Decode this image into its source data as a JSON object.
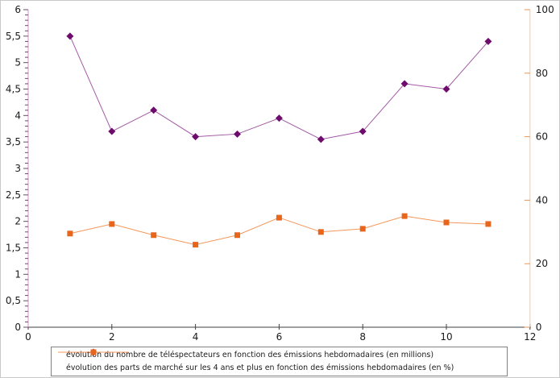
{
  "figure": {
    "background": "#ffffff",
    "border_color": "#c9c9c9",
    "text_color": "#1a1a1a"
  },
  "chart_data": {
    "type": "line",
    "title": "",
    "grid": false,
    "legend_position": "bottom",
    "x": [
      1,
      2,
      3,
      4,
      5,
      6,
      7,
      8,
      9,
      10,
      11
    ],
    "x_axis": {
      "min": 0,
      "max": 12,
      "tick_values": [
        0,
        2,
        4,
        6,
        8,
        10,
        12
      ],
      "tick_labels": [
        "0",
        "2",
        "4",
        "6",
        "8",
        "10",
        "12"
      ],
      "line_color": "#404040",
      "tick_color": "#404040",
      "label_color": "#1a1a1a"
    },
    "left_axis": {
      "min": 0,
      "max": 6,
      "major_step": 0.5,
      "minor_step": 0.1,
      "tick_values": [
        0,
        0.5,
        1,
        1.5,
        2,
        2.5,
        3,
        3.5,
        4,
        4.5,
        5,
        5.5,
        6
      ],
      "tick_labels": [
        "0",
        "0,5",
        "1",
        "1,5",
        "2",
        "2,5",
        "3",
        "3,5",
        "4",
        "4,5",
        "5",
        "5,5",
        "6"
      ],
      "line_color": "#d98fd6",
      "tick_color": "#6b4a6b",
      "label_color": "#1a1a1a"
    },
    "right_axis": {
      "min": 0,
      "max": 100,
      "major_step": 20,
      "tick_values": [
        0,
        20,
        40,
        60,
        80,
        100
      ],
      "tick_labels": [
        "0",
        "20",
        "40",
        "60",
        "80",
        "100"
      ],
      "line_color": "#f6c6a2",
      "tick_color": "#ee9450",
      "label_color": "#1a1a1a"
    },
    "series": [
      {
        "name": "évolution du nombre de téléspectateurs en fonction des émissions hebdomadaires (en millions)",
        "axis": "left",
        "marker": "diamond",
        "marker_color": "#6e0c6e",
        "line_color": "#a35aa3",
        "values": [
          5.5,
          3.7,
          4.1,
          3.6,
          3.65,
          3.95,
          3.55,
          3.7,
          4.6,
          4.5,
          5.4
        ]
      },
      {
        "name": "évolution des parts de marché sur les 4 ans et plus en fonction des émissions hebdomadaires (en %)",
        "axis": "right",
        "marker": "square",
        "marker_color": "#e7661b",
        "line_color": "#f4975a",
        "values": [
          29.5,
          32.5,
          29,
          26,
          29,
          34.5,
          30,
          31,
          35,
          33,
          32.5
        ]
      }
    ]
  },
  "legend": {
    "border_color": "#808080"
  }
}
